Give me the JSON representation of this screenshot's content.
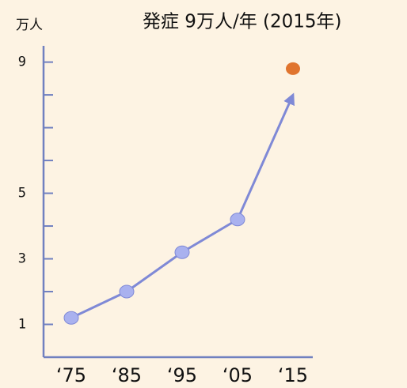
{
  "chart_data": {
    "type": "line",
    "annotation": "発症 9万人/年 (2015年)",
    "y_unit": "万人",
    "categories": [
      "‘75",
      "‘85",
      "‘95",
      "‘05",
      "‘15"
    ],
    "series": [
      {
        "color": "#7f89d6",
        "marker_color": "#a9b1ef",
        "values": [
          1.2,
          2.0,
          3.2,
          4.2,
          8.0
        ],
        "arrow_end": true
      },
      {
        "color": "#e0742e",
        "values": [
          null,
          null,
          null,
          null,
          8.8
        ]
      }
    ],
    "ylim": [
      0,
      9.4
    ],
    "yticks": [
      1,
      3,
      5,
      9
    ],
    "yminor_ticks": [
      2,
      4,
      6,
      7,
      8
    ]
  }
}
